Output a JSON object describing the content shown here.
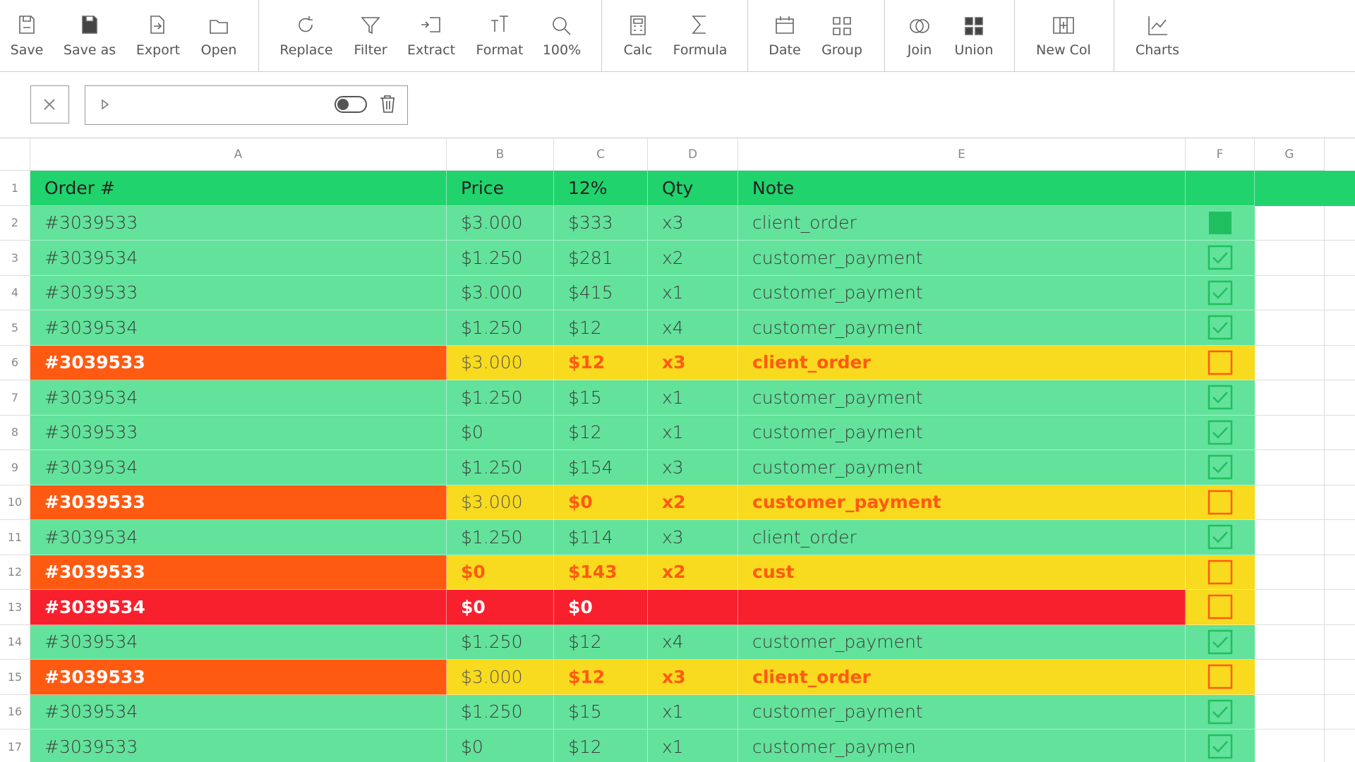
{
  "toolbar": [
    {
      "label": "Save"
    },
    {
      "label": "Save as"
    },
    {
      "label": "Export"
    },
    {
      "label": "Open"
    },
    {
      "label": "Replace"
    },
    {
      "label": "Filter"
    },
    {
      "label": "Extract"
    },
    {
      "label": "Format"
    },
    {
      "label": "100%"
    },
    {
      "label": "Calc"
    },
    {
      "label": "Formula"
    },
    {
      "label": "Date"
    },
    {
      "label": "Group"
    },
    {
      "label": "Join"
    },
    {
      "label": "Union"
    },
    {
      "label": "New Col"
    },
    {
      "label": "Charts"
    }
  ],
  "columns": [
    "A",
    "B",
    "C",
    "D",
    "E",
    "F",
    "G"
  ],
  "row_numbers": [
    1,
    2,
    3,
    4,
    5,
    6,
    7,
    8,
    9,
    10,
    11,
    12,
    13,
    14,
    15,
    16,
    17
  ],
  "header": [
    "Order #",
    "Price",
    "12%",
    "Qty",
    "Note"
  ],
  "rows": [
    {
      "cells": [
        "#3039533",
        "$3.000",
        "$333",
        "x3",
        "client_order"
      ],
      "state": "ok",
      "check": "filled"
    },
    {
      "cells": [
        "#3039534",
        "$1.250",
        "$281",
        "x2",
        "customer_payment"
      ],
      "state": "ok",
      "check": true
    },
    {
      "cells": [
        "#3039533",
        "$3.000",
        "$415",
        "x1",
        "customer_payment"
      ],
      "state": "ok",
      "check": true
    },
    {
      "cells": [
        "#3039534",
        "$1.250",
        "$12",
        "x4",
        "customer_payment"
      ],
      "state": "ok",
      "check": true
    },
    {
      "cells": [
        "#3039533",
        "$3.000",
        "$12",
        "x3",
        "client_order"
      ],
      "state": "warn",
      "alert": [
        2,
        3,
        4
      ],
      "check": false
    },
    {
      "cells": [
        "#3039534",
        "$1.250",
        "$15",
        "x1",
        "customer_payment"
      ],
      "state": "ok",
      "check": true
    },
    {
      "cells": [
        "#3039533",
        "$0",
        "$12",
        "x1",
        "customer_payment"
      ],
      "state": "ok",
      "check": true
    },
    {
      "cells": [
        "#3039534",
        "$1.250",
        "$154",
        "x3",
        "customer_payment"
      ],
      "state": "ok",
      "check": true
    },
    {
      "cells": [
        "#3039533",
        "$3.000",
        "$0",
        "x2",
        "customer_payment"
      ],
      "state": "warn",
      "alert": [
        2,
        3,
        4
      ],
      "check": false
    },
    {
      "cells": [
        "#3039534",
        "$1.250",
        "$114",
        "x3",
        "client_order"
      ],
      "state": "ok",
      "check": true
    },
    {
      "cells": [
        "#3039533",
        "$0",
        "$143",
        "x2",
        "cust"
      ],
      "state": "warn",
      "alert": [
        1,
        2,
        3,
        4
      ],
      "check": false
    },
    {
      "cells": [
        "#3039534",
        "$0",
        "$0",
        null,
        null
      ],
      "state": "error",
      "check": false
    },
    {
      "cells": [
        "#3039534",
        "$1.250",
        "$12",
        "x4",
        "customer_payment"
      ],
      "state": "ok",
      "check": true
    },
    {
      "cells": [
        "#3039533",
        "$3.000",
        "$12",
        "x3",
        "client_order"
      ],
      "state": "warn",
      "alert": [
        2,
        3,
        4
      ],
      "check": false
    },
    {
      "cells": [
        "#3039534",
        "$1.250",
        "$15",
        "x1",
        "customer_payment"
      ],
      "state": "ok",
      "check": true
    },
    {
      "cells": [
        "#3039533",
        "$0",
        "$12",
        "x1",
        "customer_paymen"
      ],
      "state": "ok",
      "check": true
    }
  ]
}
